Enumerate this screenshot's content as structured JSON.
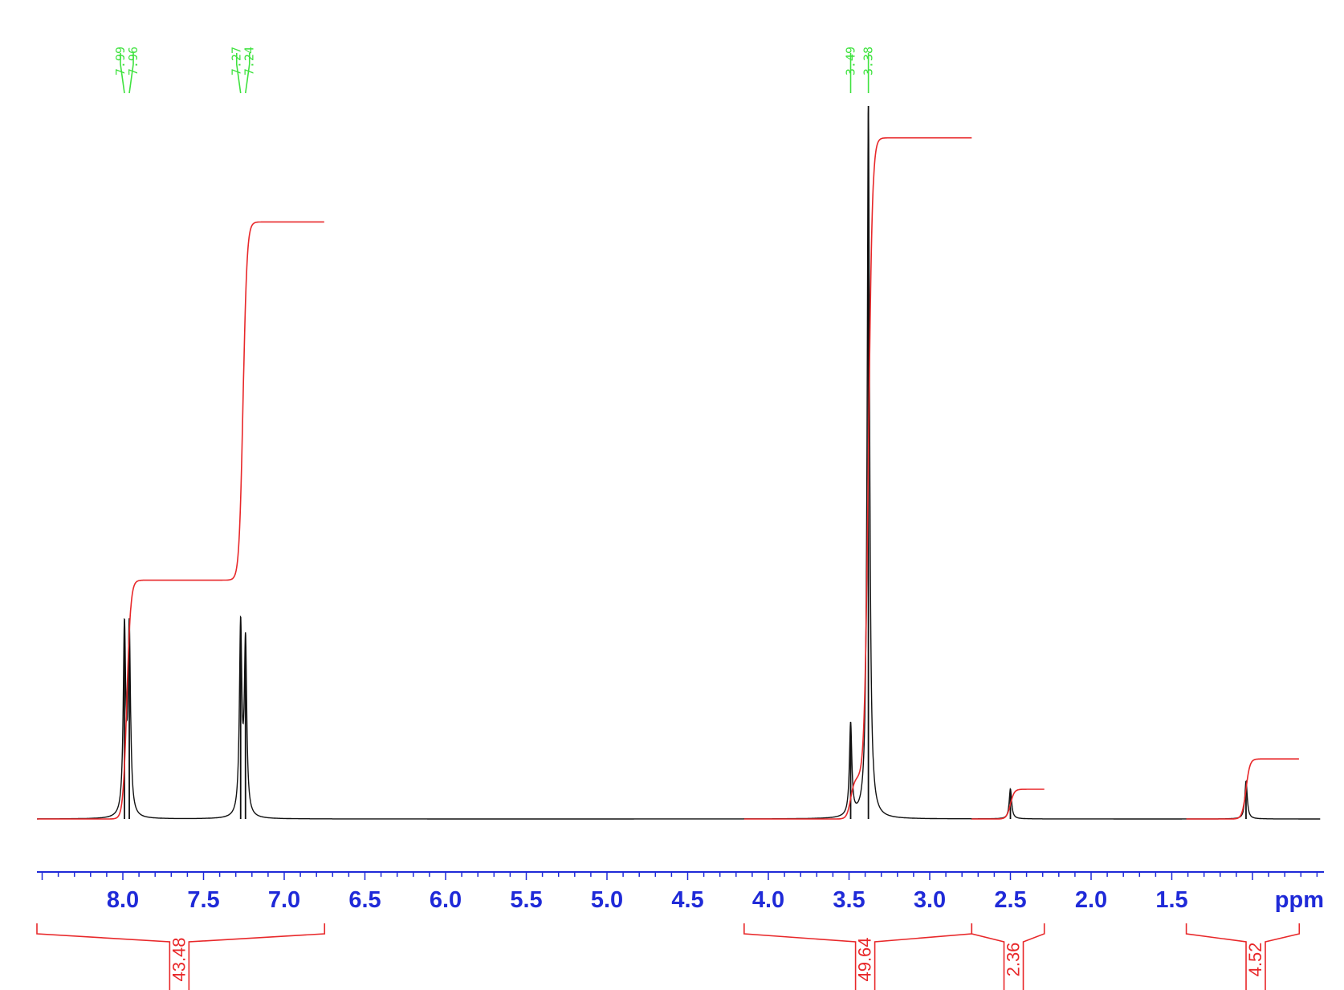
{
  "chart_data": {
    "type": "line",
    "title": "",
    "xlabel": "ppm",
    "ylabel": "",
    "xlim": [
      8.58,
      0.58
    ],
    "x_axis_reversed": true,
    "x_ticks": [
      "8.0",
      "7.5",
      "7.0",
      "6.5",
      "6.0",
      "5.5",
      "5.0",
      "4.5",
      "4.0",
      "3.5",
      "3.0",
      "2.5",
      "2.0",
      "1.5"
    ],
    "series": [
      {
        "role": "spectrum",
        "peaks": [
          {
            "ppm": 7.99,
            "height": 0.26
          },
          {
            "ppm": 7.96,
            "height": 0.26
          },
          {
            "ppm": 7.27,
            "height": 0.265
          },
          {
            "ppm": 7.24,
            "height": 0.24
          },
          {
            "ppm": 3.49,
            "height": 0.13
          },
          {
            "ppm": 3.38,
            "height": 1.0
          },
          {
            "ppm": 2.5,
            "height": 0.042
          },
          {
            "ppm": 1.04,
            "height": 0.053
          }
        ]
      },
      {
        "role": "integral",
        "regions": [
          {
            "from": 8.58,
            "to": 6.75,
            "value": "43.48",
            "start_level": 0.0,
            "end_level": 0.845
          },
          {
            "from": 4.15,
            "to": 2.74,
            "value": "49.64",
            "start_level": 0.0,
            "end_level": 0.964
          },
          {
            "from": 2.74,
            "to": 2.29,
            "value": "2.36",
            "start_level": 0.0,
            "end_level": 0.042
          },
          {
            "from": 1.41,
            "to": 0.71,
            "value": "4.52",
            "start_level": 0.0,
            "end_level": 0.085
          }
        ]
      }
    ],
    "peak_labels": [
      {
        "group": "7.99-7.96",
        "values": [
          "7.99",
          "7.96"
        ],
        "ppm": 7.975
      },
      {
        "group": "7.27-7.24",
        "values": [
          "7.27",
          "7.24"
        ],
        "ppm": 7.255
      },
      {
        "group": "3.49-3.38",
        "values": [
          "3.49",
          "3.38"
        ],
        "ppm": 3.435
      }
    ],
    "colors": {
      "spectrum": "#111111",
      "integral": "#e8282a",
      "axis": "#1f2ad8",
      "peak_labels": "#3fe23f"
    }
  }
}
